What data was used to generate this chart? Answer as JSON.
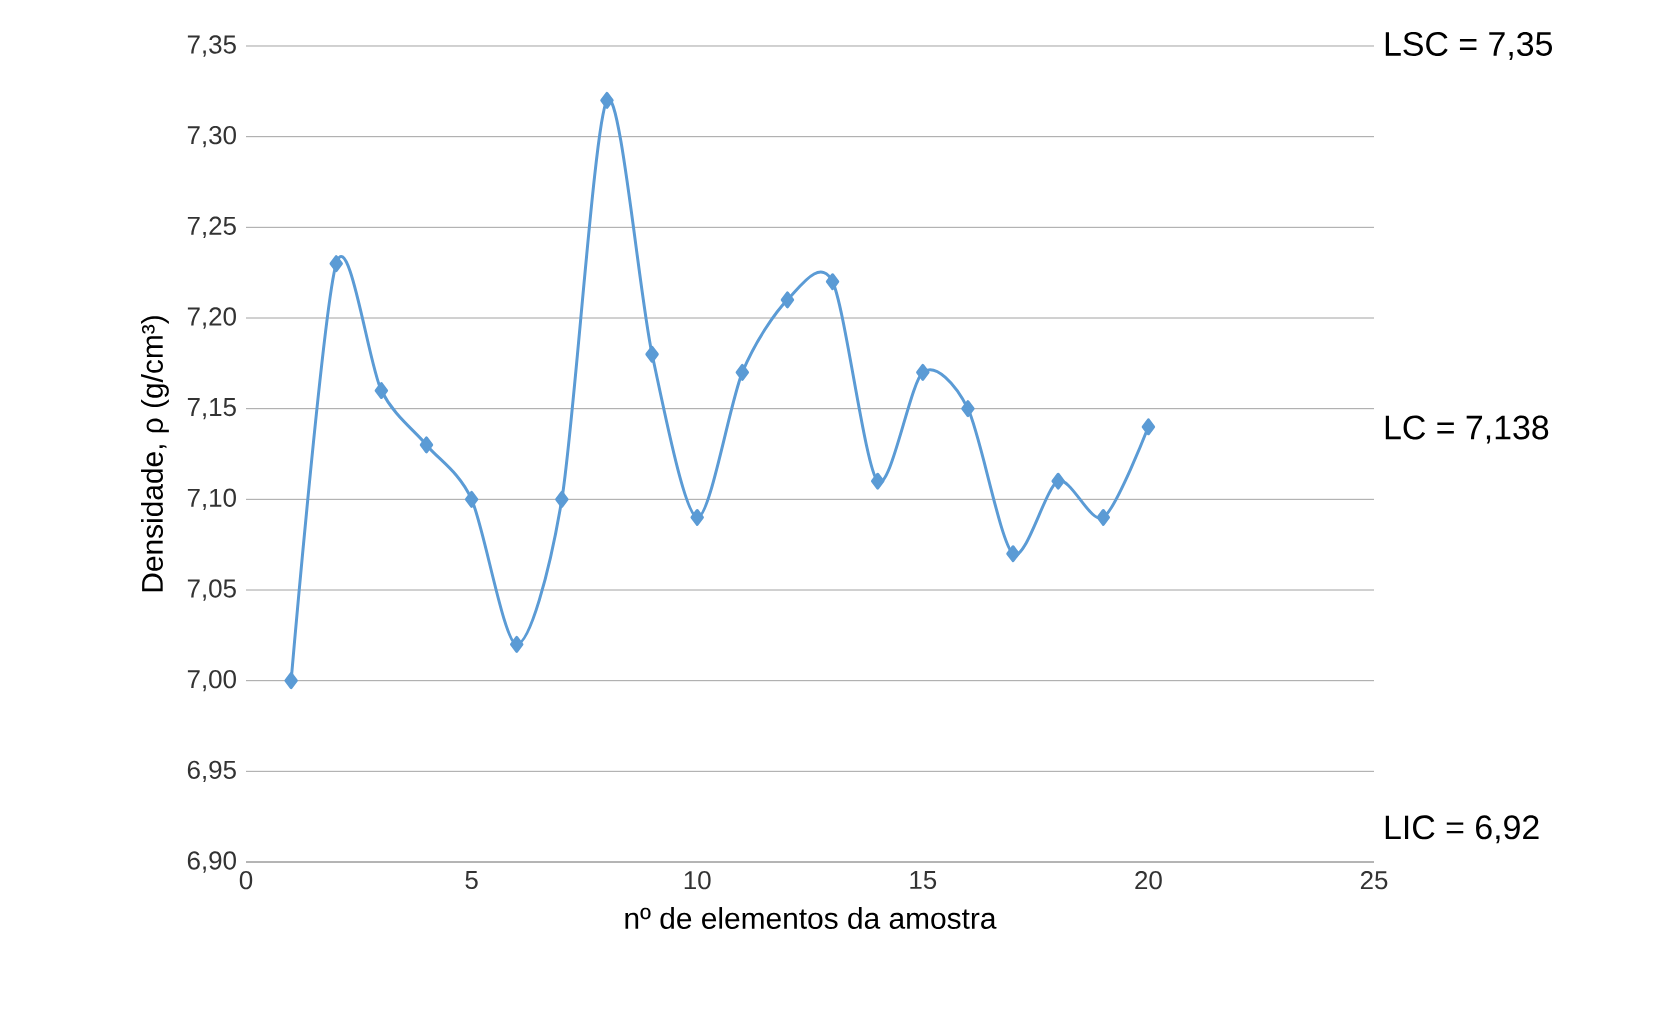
{
  "chart_data": {
    "type": "line",
    "xlabel": "nº de elementos da amostra",
    "ylabel": "Densidade, ρ (g/cm³)",
    "x": [
      1,
      2,
      3,
      4,
      5,
      6,
      7,
      8,
      9,
      10,
      11,
      12,
      13,
      14,
      15,
      16,
      17,
      18,
      19,
      20
    ],
    "series": [
      {
        "color": "#5b9bd5",
        "values": [
          7.0,
          7.23,
          7.16,
          7.13,
          7.1,
          7.02,
          7.1,
          7.32,
          7.18,
          7.09,
          7.17,
          7.21,
          7.22,
          7.11,
          7.17,
          7.15,
          7.07,
          7.11,
          7.09,
          7.14
        ]
      }
    ],
    "xlim": [
      0,
      25
    ],
    "xticks": [
      0,
      5,
      10,
      15,
      20,
      25
    ],
    "ylim": [
      6.9,
      7.35
    ],
    "yticks": [
      {
        "value": 6.9,
        "label": "6,90"
      },
      {
        "value": 6.95,
        "label": "6,95"
      },
      {
        "value": 7.0,
        "label": "7,00"
      },
      {
        "value": 7.05,
        "label": "7,05"
      },
      {
        "value": 7.1,
        "label": "7,10"
      },
      {
        "value": 7.15,
        "label": "7,15"
      },
      {
        "value": 7.2,
        "label": "7,20"
      },
      {
        "value": 7.25,
        "label": "7,25"
      },
      {
        "value": 7.3,
        "label": "7,30"
      },
      {
        "value": 7.35,
        "label": "7,35"
      }
    ],
    "annotations": [
      "LSC = 7,35",
      "LC = 7,138",
      "LIC = 6,92"
    ],
    "grid": "y",
    "marker": "diamond",
    "line_style": "solid"
  }
}
